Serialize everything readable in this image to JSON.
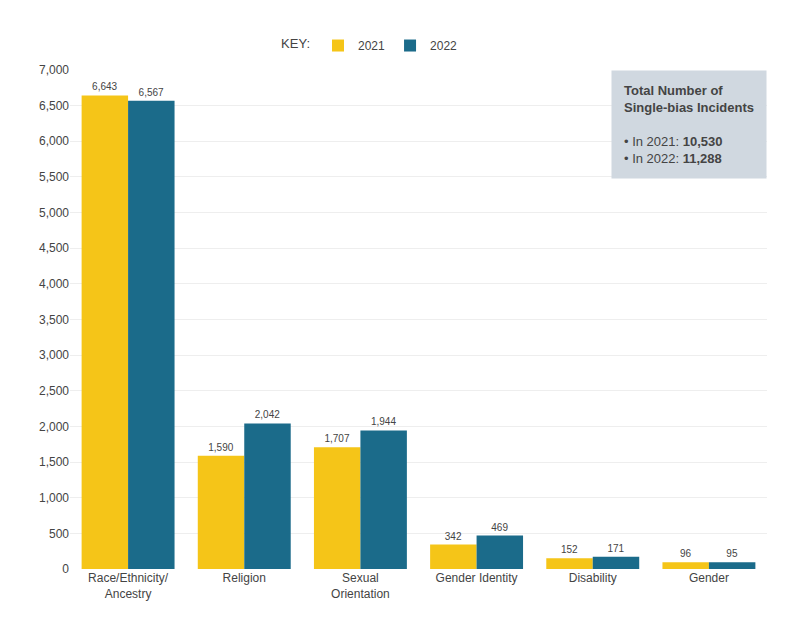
{
  "chart_data": {
    "type": "bar",
    "categories": [
      "Race/Ethnicity/\nAncestry",
      "Religion",
      "Sexual\nOrientation",
      "Gender Identity",
      "Disability",
      "Gender"
    ],
    "series": [
      {
        "name": "2021",
        "color": "#F5C518",
        "values": [
          6643,
          1590,
          1707,
          342,
          152,
          96
        ],
        "value_labels": [
          "6,643",
          "1,590",
          "1,707",
          "342",
          "152",
          "96"
        ]
      },
      {
        "name": "2022",
        "color": "#1B6B8A",
        "values": [
          6567,
          2042,
          1944,
          469,
          171,
          95
        ],
        "value_labels": [
          "6,567",
          "2,042",
          "1,944",
          "469",
          "171",
          "95"
        ]
      }
    ],
    "data_labels": true,
    "legend": "top",
    "legend_title": "KEY:",
    "ylim": [
      0,
      7000
    ],
    "yticks": [
      0,
      500,
      {
        "value": 1000,
        "label": "1,000"
      },
      {
        "value": 1500,
        "label": "1,500"
      },
      {
        "value": 2000,
        "label": "2,000"
      },
      {
        "value": 2500,
        "label": "2,500"
      },
      {
        "value": 3000,
        "label": "3,000"
      },
      {
        "value": 3500,
        "label": "3,500"
      },
      {
        "value": 4000,
        "label": "4,000"
      },
      {
        "value": 4500,
        "label": "4,500"
      },
      {
        "value": 5000,
        "label": "5,000"
      },
      {
        "value": 5500,
        "label": "5,500"
      },
      {
        "value": 6000,
        "label": "6,000"
      },
      {
        "value": 6500,
        "label": "6,500"
      },
      {
        "value": 7000,
        "label": "7,000"
      }
    ],
    "grid": true,
    "annotations": [
      {
        "title": "Total Number of\nSingle-bias Incidents",
        "color": "#D0D8E0",
        "lines": [
          {
            "text": "• In 2021:",
            "value": 10530,
            "label": "10,530"
          },
          {
            "text": "• In 2022:",
            "value": 11288,
            "label": "11,288"
          }
        ]
      }
    ]
  }
}
